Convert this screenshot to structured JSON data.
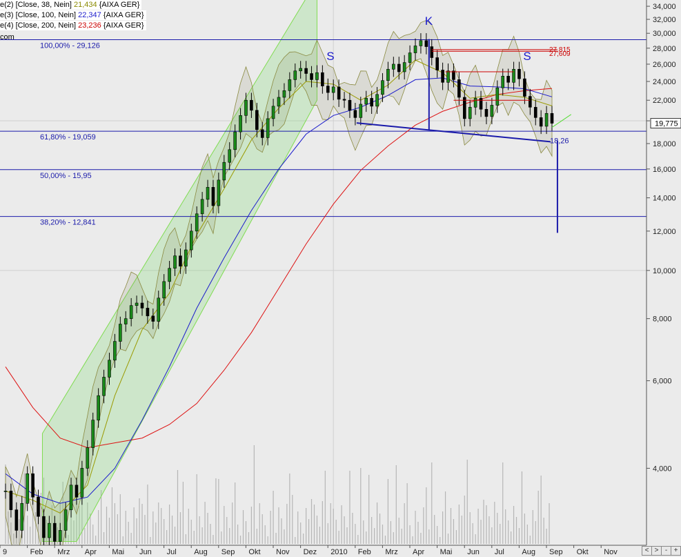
{
  "legend": [
    {
      "prefix": "e(2) [Close, 38, Nein]",
      "value": "21,434",
      "suffix": "{AIXA GER}",
      "color": "#8a8a00"
    },
    {
      "prefix": "e(3) [Close, 100, Nein]",
      "value": "22,347",
      "suffix": "{AIXA GER}",
      "color": "#1a1acc"
    },
    {
      "prefix": "e(4) [Close, 200, Nein]",
      "value": "23,236",
      "suffix": "{AIXA GER}",
      "color": "#cc0000"
    }
  ],
  "source_text": "com",
  "nav_buttons": [
    "<",
    ">",
    "-",
    "+"
  ],
  "chart_data": {
    "type": "candlestick",
    "scale": "log",
    "ylim": [
      2.8,
      35
    ],
    "y_ticks": [
      "34,000",
      "32,000",
      "30,000",
      "28,000",
      "26,000",
      "24,000",
      "22,000",
      "20,000",
      "18,000",
      "16,000",
      "14,000",
      "12,000",
      "10,000",
      "8,000",
      "6,000",
      "4,000"
    ],
    "y_tick_values": [
      34,
      32,
      30,
      28,
      26,
      24,
      22,
      20,
      18,
      16,
      14,
      12,
      10,
      8,
      6,
      4
    ],
    "x_ticks": [
      "9",
      "Feb",
      "Mrz",
      "Apr",
      "Mai",
      "Jun",
      "Jul",
      "Aug",
      "Sep",
      "Okt",
      "Nov",
      "Dez",
      "2010",
      "Feb",
      "Mrz",
      "Apr",
      "Mai",
      "Jun",
      "Jul",
      "Aug",
      "Sep",
      "Okt",
      "Nov"
    ],
    "x_tick_months": [
      0,
      1,
      2,
      3,
      4,
      5,
      6,
      7,
      8,
      9,
      10,
      11,
      12,
      13,
      14,
      15,
      16,
      17,
      18,
      19,
      20,
      21,
      22
    ],
    "last_price_label": "19,775",
    "last_price": 19.775,
    "fibonacci": [
      {
        "label": "100,00% - 29,126",
        "value": 29.126
      },
      {
        "label": "61,80% - 19,059",
        "value": 19.059
      },
      {
        "label": "50,00% - 15,95",
        "value": 15.95
      },
      {
        "label": "38,20% - 12,841",
        "value": 12.841
      }
    ],
    "pattern_labels": [
      {
        "text": "S",
        "month": 11.9,
        "value": 27.0
      },
      {
        "text": "K",
        "month": 15.5,
        "value": 31.8
      },
      {
        "text": "S",
        "month": 19.1,
        "value": 27.0
      }
    ],
    "target_label": "18,26",
    "target_value": 18.26,
    "target_end_value": 11.9,
    "resistance_labels": [
      "27,815",
      "27,609"
    ],
    "resistance_values": [
      27.815,
      27.609
    ],
    "neckline": [
      [
        12.85,
        19.8
      ],
      [
        19.95,
        18.15
      ]
    ],
    "closes": [
      [
        0,
        3.6
      ],
      [
        0.2,
        3.3
      ],
      [
        0.4,
        3.0
      ],
      [
        0.6,
        3.4
      ],
      [
        0.8,
        3.9
      ],
      [
        1.0,
        3.5
      ],
      [
        1.2,
        3.2
      ],
      [
        1.4,
        2.9
      ],
      [
        1.6,
        3.1
      ],
      [
        1.8,
        2.85
      ],
      [
        2.0,
        3.0
      ],
      [
        2.2,
        3.3
      ],
      [
        2.4,
        3.7
      ],
      [
        2.6,
        3.5
      ],
      [
        2.8,
        4.0
      ],
      [
        3.0,
        4.4
      ],
      [
        3.2,
        5.0
      ],
      [
        3.4,
        5.6
      ],
      [
        3.6,
        6.1
      ],
      [
        3.8,
        6.6
      ],
      [
        4.0,
        7.2
      ],
      [
        4.2,
        7.8
      ],
      [
        4.4,
        8.0
      ],
      [
        4.6,
        8.5
      ],
      [
        4.8,
        8.6
      ],
      [
        5.0,
        8.4
      ],
      [
        5.2,
        8.1
      ],
      [
        5.4,
        7.9
      ],
      [
        5.6,
        8.8
      ],
      [
        5.8,
        9.5
      ],
      [
        6.0,
        10.1
      ],
      [
        6.2,
        10.7
      ],
      [
        6.4,
        10.2
      ],
      [
        6.6,
        11.0
      ],
      [
        6.8,
        12.0
      ],
      [
        7.0,
        13.0
      ],
      [
        7.2,
        13.9
      ],
      [
        7.4,
        14.7
      ],
      [
        7.6,
        13.5
      ],
      [
        7.8,
        15.2
      ],
      [
        8.0,
        16.5
      ],
      [
        8.2,
        17.5
      ],
      [
        8.4,
        19.0
      ],
      [
        8.6,
        20.5
      ],
      [
        8.8,
        22.0
      ],
      [
        9.0,
        21.0
      ],
      [
        9.2,
        19.2
      ],
      [
        9.4,
        18.5
      ],
      [
        9.6,
        20.2
      ],
      [
        9.8,
        21.4
      ],
      [
        10.0,
        22.3
      ],
      [
        10.2,
        23.0
      ],
      [
        10.4,
        24.2
      ],
      [
        10.6,
        25.2
      ],
      [
        10.8,
        25.5
      ],
      [
        11.0,
        24.9
      ],
      [
        11.2,
        24.2
      ],
      [
        11.4,
        25.0
      ],
      [
        11.6,
        23.5
      ],
      [
        11.8,
        22.8
      ],
      [
        12.0,
        23.4
      ],
      [
        12.2,
        22.1
      ],
      [
        12.4,
        22.0
      ],
      [
        12.6,
        21.0
      ],
      [
        12.8,
        20.3
      ],
      [
        13.0,
        21.6
      ],
      [
        13.2,
        22.2
      ],
      [
        13.4,
        21.4
      ],
      [
        13.6,
        22.6
      ],
      [
        13.8,
        24.1
      ],
      [
        14.0,
        25.4
      ],
      [
        14.2,
        26.0
      ],
      [
        14.4,
        25.1
      ],
      [
        14.6,
        26.2
      ],
      [
        14.8,
        27.4
      ],
      [
        15.0,
        28.3
      ],
      [
        15.2,
        29.0
      ],
      [
        15.4,
        28.2
      ],
      [
        15.6,
        26.8
      ],
      [
        15.8,
        25.3
      ],
      [
        16.0,
        23.9
      ],
      [
        16.2,
        25.2
      ],
      [
        16.4,
        24.2
      ],
      [
        16.6,
        22.3
      ],
      [
        16.8,
        20.2
      ],
      [
        17.0,
        21.3
      ],
      [
        17.2,
        22.2
      ],
      [
        17.4,
        21.1
      ],
      [
        17.6,
        20.4
      ],
      [
        17.8,
        21.5
      ],
      [
        18.0,
        23.3
      ],
      [
        18.2,
        24.6
      ],
      [
        18.4,
        23.9
      ],
      [
        18.6,
        25.4
      ],
      [
        18.8,
        24.3
      ],
      [
        19.0,
        22.4
      ],
      [
        19.2,
        21.3
      ],
      [
        19.4,
        20.3
      ],
      [
        19.6,
        19.5
      ],
      [
        19.8,
        20.7
      ],
      [
        20.0,
        19.775
      ]
    ],
    "ema38": [
      [
        0,
        3.6
      ],
      [
        1,
        3.45
      ],
      [
        2,
        3.25
      ],
      [
        3,
        3.7
      ],
      [
        4,
        5.6
      ],
      [
        5,
        7.6
      ],
      [
        6,
        9.0
      ],
      [
        7,
        11.8
      ],
      [
        8,
        14.6
      ],
      [
        9,
        18.3
      ],
      [
        10,
        21.2
      ],
      [
        11,
        24.0
      ],
      [
        12,
        23.7
      ],
      [
        13,
        22.0
      ],
      [
        14,
        23.6
      ],
      [
        15,
        26.5
      ],
      [
        16,
        25.0
      ],
      [
        17,
        22.2
      ],
      [
        18,
        22.6
      ],
      [
        19,
        22.3
      ],
      [
        20,
        21.434
      ]
    ],
    "ema100": [
      [
        0,
        3.9
      ],
      [
        1,
        3.55
      ],
      [
        2,
        3.4
      ],
      [
        3,
        3.5
      ],
      [
        4,
        4.0
      ],
      [
        5,
        5.0
      ],
      [
        6,
        6.4
      ],
      [
        7,
        8.4
      ],
      [
        8,
        10.6
      ],
      [
        9,
        13.2
      ],
      [
        10,
        16.0
      ],
      [
        11,
        18.8
      ],
      [
        12,
        20.5
      ],
      [
        13,
        21.3
      ],
      [
        14,
        22.5
      ],
      [
        15,
        24.2
      ],
      [
        16,
        24.4
      ],
      [
        17,
        23.5
      ],
      [
        18,
        23.4
      ],
      [
        19,
        23.2
      ],
      [
        20,
        22.347
      ]
    ],
    "ema200": [
      [
        0,
        6.4
      ],
      [
        1,
        5.3
      ],
      [
        2,
        4.6
      ],
      [
        3,
        4.4
      ],
      [
        4,
        4.5
      ],
      [
        5,
        4.6
      ],
      [
        6,
        4.9
      ],
      [
        7,
        5.4
      ],
      [
        8,
        6.3
      ],
      [
        9,
        7.5
      ],
      [
        10,
        9.2
      ],
      [
        11,
        11.3
      ],
      [
        12,
        13.6
      ],
      [
        13,
        15.9
      ],
      [
        14,
        17.8
      ],
      [
        15,
        19.6
      ],
      [
        16,
        20.9
      ],
      [
        17,
        21.8
      ],
      [
        18,
        22.6
      ],
      [
        19,
        23.0
      ],
      [
        20,
        23.236
      ]
    ]
  }
}
